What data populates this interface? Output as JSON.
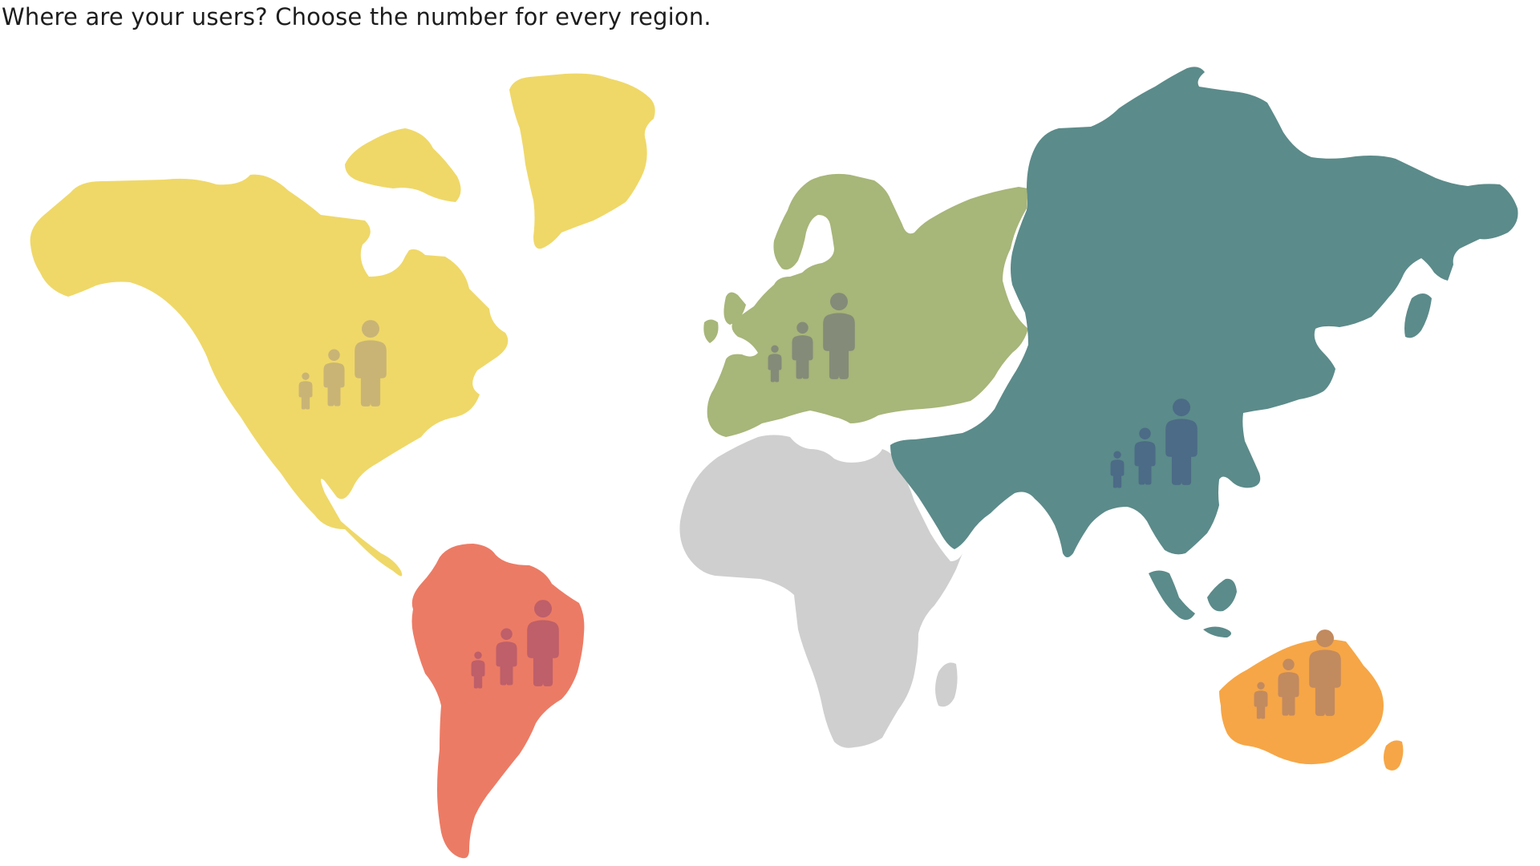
{
  "prompt": "Where are your users? Choose the number for every region.",
  "regions": [
    {
      "id": "north-america",
      "land_color": "#EFD868",
      "icon_color": "#C9B476"
    },
    {
      "id": "greenland",
      "land_color": "#EFD868"
    },
    {
      "id": "south-america",
      "land_color": "#EC7B65",
      "icon_color": "#BE5F6A"
    },
    {
      "id": "europe",
      "land_color": "#A7B679",
      "icon_color": "#848B78"
    },
    {
      "id": "africa",
      "land_color": "#CFCFCF"
    },
    {
      "id": "asia",
      "land_color": "#5B8B8A",
      "icon_color": "#4C6B86"
    },
    {
      "id": "oceania",
      "land_color": "#F6A646",
      "icon_color": "#C28A5F"
    }
  ],
  "user_size_options": [
    "small",
    "medium",
    "large"
  ]
}
